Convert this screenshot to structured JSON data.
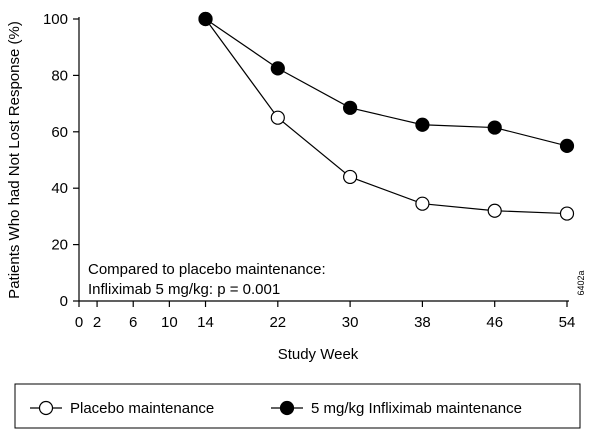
{
  "chart_data": {
    "type": "line",
    "xlabel": "Study Week",
    "ylabel": "Patients Who had Not Lost Response (%)",
    "xlim": [
      0,
      54
    ],
    "ylim": [
      0,
      100
    ],
    "x_ticks": [
      0,
      2,
      6,
      10,
      14,
      22,
      30,
      38,
      46,
      54
    ],
    "y_ticks": [
      0,
      20,
      40,
      60,
      80,
      100
    ],
    "grid": false,
    "legend_position": "bottom",
    "series": [
      {
        "name": "Placebo maintenance",
        "marker": "open-circle",
        "x": [
          14,
          22,
          30,
          38,
          46,
          54
        ],
        "y": [
          100,
          65,
          44,
          34.5,
          32,
          31
        ]
      },
      {
        "name": "5 mg/kg Infliximab maintenance",
        "marker": "filled-circle",
        "x": [
          14,
          22,
          30,
          38,
          46,
          54
        ],
        "y": [
          100,
          82.5,
          68.5,
          62.5,
          61.5,
          55
        ]
      }
    ],
    "annotations": [
      "Compared to placebo maintenance:",
      "Infliximab 5 mg/kg:  p = 0.001"
    ],
    "figure_code": "6402a"
  }
}
